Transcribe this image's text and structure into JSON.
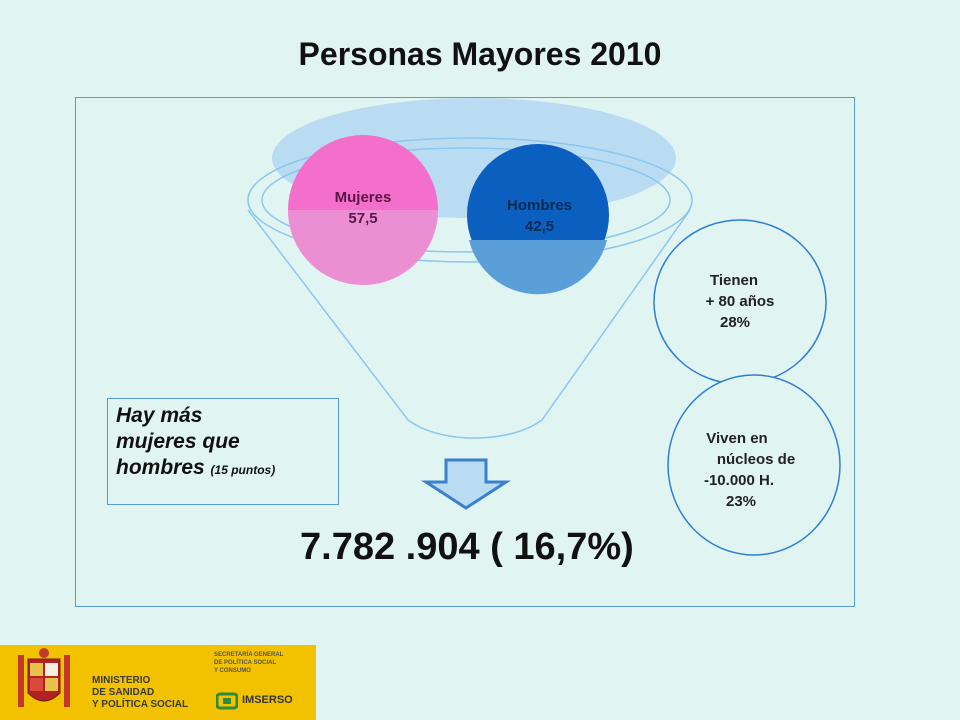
{
  "title": "Personas Mayores 2010",
  "segments": {
    "mujeres": {
      "label": "Mujeres",
      "value": "57,5"
    },
    "hombres": {
      "label": "Hombres",
      "value": "42,5"
    }
  },
  "side_circles": {
    "mayores80": {
      "line1": "Tienen",
      "line2": "+ 80 años",
      "line3": "28%"
    },
    "rural": {
      "line1": "Viven en",
      "line2": "núcleos de",
      "line3": "-10.000 H.",
      "line4": "23%"
    }
  },
  "note": {
    "line1": "Hay más",
    "line2": "mujeres que",
    "line3": "hombres",
    "small": "(15 puntos)"
  },
  "total": "7.782 .904 ( 16,7%)",
  "footer": {
    "ministry_line1": "MINISTERIO",
    "ministry_line2": "DE SANIDAD",
    "ministry_line3": "Y POLÍTICA SOCIAL",
    "secretaria_line1": "SECRETARÍA GENERAL",
    "secretaria_line2": "DE POLÍTICA SOCIAL",
    "secretaria_line3": "Y CONSUMO",
    "imserso": "IMSERSO"
  },
  "colors": {
    "background": "#e0f4f1",
    "mujeres": "#f46ecb",
    "hombres": "#0a5fbf",
    "funnel_top": "#b9dcf2",
    "line": "#6fb3e8",
    "footer": "#f2c200"
  }
}
